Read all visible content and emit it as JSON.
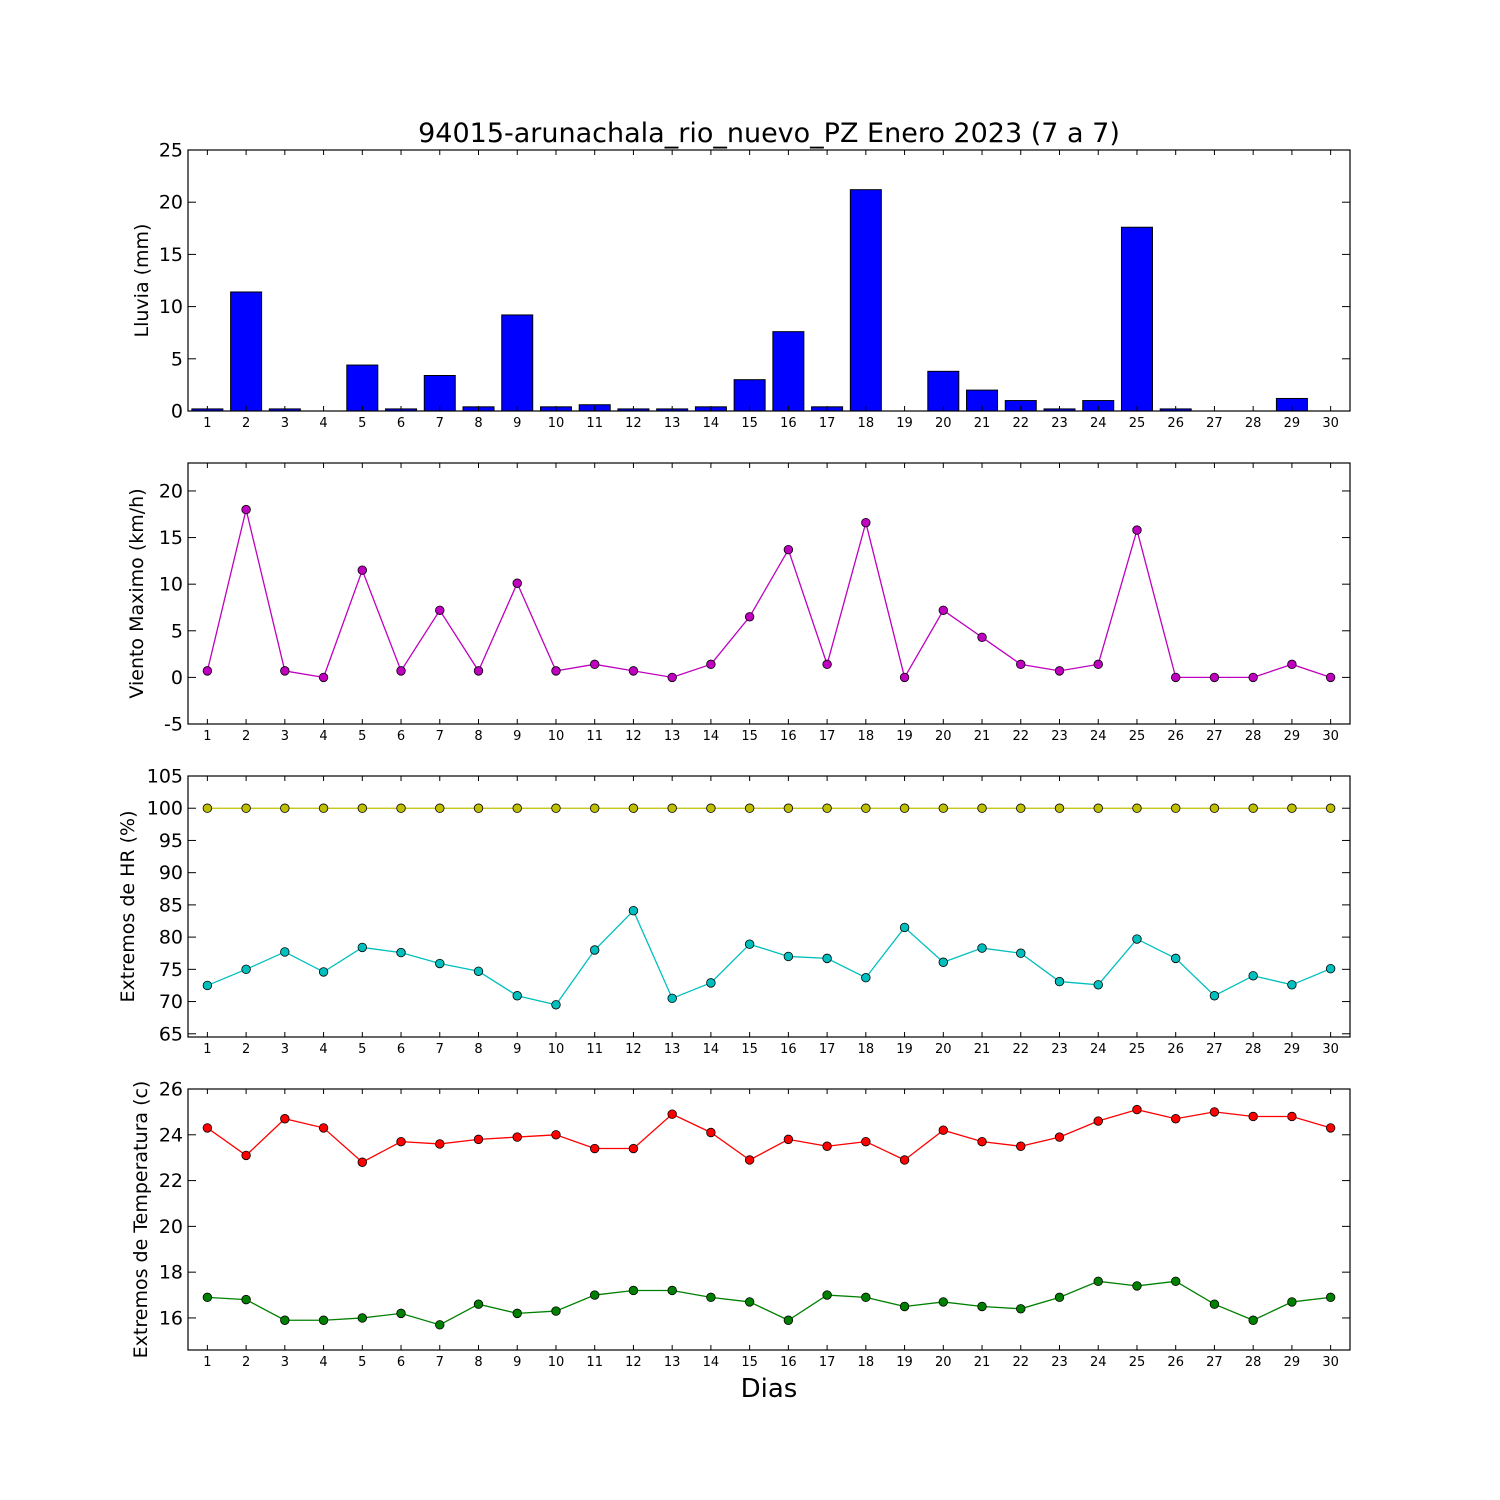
{
  "chart_data": [
    {
      "type": "bar",
      "title": "94015-arunachala_rio_nuevo_PZ Enero 2023  (7 a 7)",
      "ylabel": "Lluvia (mm)",
      "xlabel": "",
      "categories": [
        1,
        2,
        3,
        4,
        5,
        6,
        7,
        8,
        9,
        10,
        11,
        12,
        13,
        14,
        15,
        16,
        17,
        18,
        19,
        20,
        21,
        22,
        23,
        24,
        25,
        26,
        27,
        28,
        29,
        30
      ],
      "values": [
        0.2,
        11.4,
        0.2,
        0,
        4.4,
        0.2,
        3.4,
        0.4,
        9.2,
        0.4,
        0.6,
        0.2,
        0.2,
        0.4,
        3.0,
        7.6,
        0.4,
        21.2,
        0,
        3.8,
        2.0,
        1.0,
        0.2,
        1.0,
        17.6,
        0.2,
        0,
        0,
        1.2,
        0
      ],
      "ylim": [
        0,
        25
      ],
      "yticks": [
        0,
        5,
        10,
        15,
        20,
        25
      ],
      "colors": {
        "bar": "#0000ff",
        "edge": "#000000"
      }
    },
    {
      "type": "line",
      "ylabel": "Viento Maximo (km/h)",
      "xlabel": "",
      "x": [
        1,
        2,
        3,
        4,
        5,
        6,
        7,
        8,
        9,
        10,
        11,
        12,
        13,
        14,
        15,
        16,
        17,
        18,
        19,
        20,
        21,
        22,
        23,
        24,
        25,
        26,
        27,
        28,
        29,
        30
      ],
      "series": [
        {
          "values": [
            0.7,
            18.0,
            0.7,
            0,
            11.5,
            0.7,
            7.2,
            0.7,
            10.1,
            0.7,
            1.4,
            0.7,
            0,
            1.4,
            6.5,
            13.7,
            1.4,
            16.6,
            0,
            7.2,
            4.3,
            1.4,
            0.7,
            1.4,
            15.8,
            0,
            0,
            0,
            1.4,
            0
          ],
          "color": "#bf00bf"
        }
      ],
      "ylim": [
        -5,
        23
      ],
      "yticks": [
        -5,
        0,
        5,
        10,
        15,
        20
      ]
    },
    {
      "type": "line",
      "ylabel": "Extremos de HR (%)",
      "xlabel": "",
      "x": [
        1,
        2,
        3,
        4,
        5,
        6,
        7,
        8,
        9,
        10,
        11,
        12,
        13,
        14,
        15,
        16,
        17,
        18,
        19,
        20,
        21,
        22,
        23,
        24,
        25,
        26,
        27,
        28,
        29,
        30
      ],
      "series": [
        {
          "values": [
            100,
            100,
            100,
            100,
            100,
            100,
            100,
            100,
            100,
            100,
            100,
            100,
            100,
            100,
            100,
            100,
            100,
            100,
            100,
            100,
            100,
            100,
            100,
            100,
            100,
            100,
            100,
            100,
            100,
            100
          ],
          "color": "#bfbf00"
        },
        {
          "values": [
            72.5,
            75,
            77.7,
            74.6,
            78.4,
            77.6,
            75.9,
            74.7,
            70.9,
            69.5,
            78,
            84.1,
            70.5,
            72.9,
            78.9,
            77,
            76.7,
            73.7,
            81.5,
            76.1,
            78.3,
            77.5,
            73.1,
            72.6,
            79.7,
            76.7,
            70.9,
            74,
            72.6,
            75.1
          ],
          "color": "#00bfbf"
        }
      ],
      "ylim": [
        64.5,
        105
      ],
      "yticks": [
        65,
        70,
        75,
        80,
        85,
        90,
        95,
        100,
        105
      ]
    },
    {
      "type": "line",
      "ylabel": "Extremos de Temperatura (c)",
      "xlabel": "Dias",
      "x": [
        1,
        2,
        3,
        4,
        5,
        6,
        7,
        8,
        9,
        10,
        11,
        12,
        13,
        14,
        15,
        16,
        17,
        18,
        19,
        20,
        21,
        22,
        23,
        24,
        25,
        26,
        27,
        28,
        29,
        30
      ],
      "series": [
        {
          "values": [
            24.3,
            23.1,
            24.7,
            24.3,
            22.8,
            23.7,
            23.6,
            23.8,
            23.9,
            24.0,
            23.4,
            23.4,
            24.9,
            24.1,
            22.9,
            23.8,
            23.5,
            23.7,
            22.9,
            24.2,
            23.7,
            23.5,
            23.9,
            24.6,
            25.1,
            24.7,
            25.0,
            24.8,
            24.8,
            24.3
          ],
          "color": "#ff0000"
        },
        {
          "values": [
            16.9,
            16.8,
            15.9,
            15.9,
            16.0,
            16.2,
            15.7,
            16.6,
            16.2,
            16.3,
            17.0,
            17.2,
            17.2,
            16.9,
            16.7,
            15.9,
            17.0,
            16.9,
            16.5,
            16.7,
            16.5,
            16.4,
            16.9,
            17.6,
            17.4,
            17.6,
            16.6,
            15.9,
            16.7,
            16.9
          ],
          "color": "#008000"
        }
      ],
      "ylim": [
        14.6,
        26
      ],
      "yticks": [
        16,
        18,
        20,
        22,
        24,
        26
      ]
    }
  ]
}
